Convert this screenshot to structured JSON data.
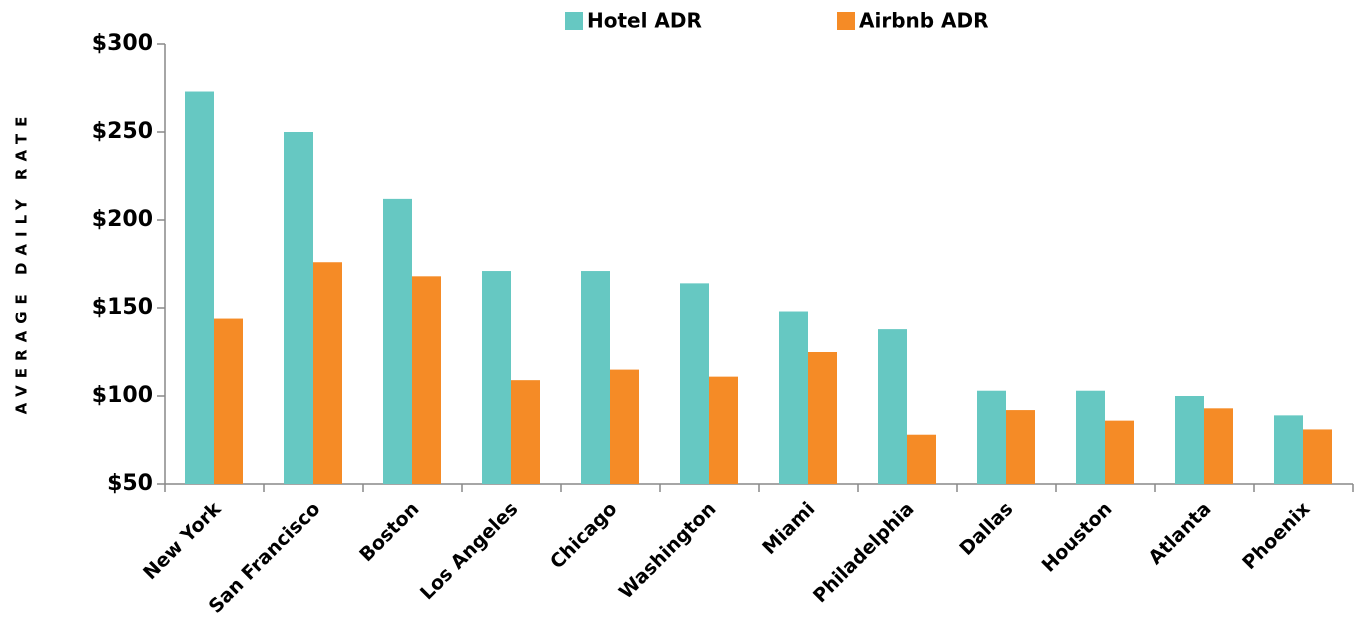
{
  "chart_data": {
    "type": "bar",
    "y_label": "AVERAGE DAILY RATE",
    "categories": [
      "New York",
      "San Francisco",
      "Boston",
      "Los Angeles",
      "Chicago",
      "Washington",
      "Miami",
      "Philadelphia",
      "Dallas",
      "Houston",
      "Atlanta",
      "Phoenix"
    ],
    "series": [
      {
        "name": "Hotel ADR",
        "color": "#66c8c2",
        "values": [
          273,
          250,
          212,
          171,
          171,
          164,
          148,
          138,
          103,
          103,
          100,
          89
        ]
      },
      {
        "name": "Airbnb ADR",
        "color": "#f58b26",
        "values": [
          144,
          176,
          168,
          109,
          115,
          111,
          125,
          78,
          92,
          86,
          93,
          81
        ]
      }
    ],
    "ylim": [
      50,
      300
    ],
    "yticks": [
      {
        "value": 50,
        "label": "$50"
      },
      {
        "value": 100,
        "label": "$100"
      },
      {
        "value": 150,
        "label": "$150"
      },
      {
        "value": 200,
        "label": "$200"
      },
      {
        "value": 250,
        "label": "$250"
      },
      {
        "value": 300,
        "label": "$300"
      }
    ],
    "grid": false,
    "legend": "top"
  }
}
